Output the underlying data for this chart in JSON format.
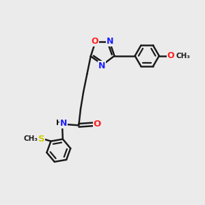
{
  "background_color": "#ebebeb",
  "bond_color": "#1a1a1a",
  "bond_width": 1.8,
  "figsize": [
    3.0,
    3.0
  ],
  "dpi": 100,
  "atom_colors": {
    "N": "#2020ff",
    "O": "#ff2020",
    "S": "#cccc00",
    "C": "#1a1a1a",
    "H": "#808080"
  },
  "font_size": 9
}
